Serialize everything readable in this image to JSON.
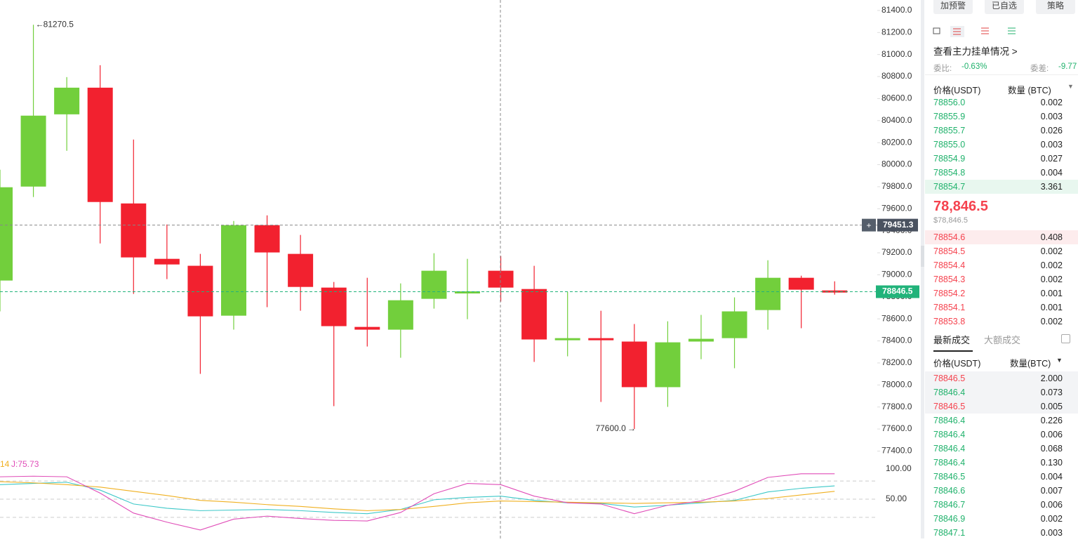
{
  "chart_data": {
    "type": "candlestick",
    "open": [
      78948,
      79801,
      80457,
      80699,
      79648,
      79145,
      79082,
      78629,
      79451,
      79190,
      78884,
      78527,
      78502,
      78782,
      78840,
      79037,
      78871,
      78413,
      78425,
      78394,
      77980,
      78394,
      78425,
      78680,
      78973,
      78858
    ],
    "high": [
      79954,
      81270.5,
      80795,
      80903,
      80228,
      79457,
      79190,
      79489,
      79540,
      79362,
      78935,
      78973,
      78922,
      79196,
      79145,
      79171,
      79082,
      78846,
      78674,
      78553,
      78578,
      78636,
      78795,
      79132,
      78992,
      78941
    ],
    "low": [
      78668,
      79706,
      80126,
      79285,
      78827,
      78961,
      78101,
      78502,
      78706,
      78674,
      77808,
      78349,
      78247,
      78693,
      78597,
      78757,
      78209,
      78260,
      77846,
      77600,
      77801,
      78234,
      78152,
      78502,
      78515,
      78820
    ],
    "close": [
      79795,
      80445,
      80699,
      79661,
      79158,
      79094,
      78623,
      79451,
      79203,
      78890,
      78534,
      78502,
      78769,
      79037,
      78850,
      78884,
      78413,
      78425,
      78406,
      77980,
      78387,
      78419,
      78668,
      78973,
      78865,
      78846.5
    ],
    "up_color": "#72cf3c",
    "down_color": "#f2212f",
    "ylim": [
      77320,
      81495
    ],
    "yticks": [
      {
        "value": 81400,
        "label": "81400.0"
      },
      {
        "value": 81200,
        "label": "81200.0"
      },
      {
        "value": 81000,
        "label": "81000.0"
      },
      {
        "value": 80800,
        "label": "80800.0"
      },
      {
        "value": 80600,
        "label": "80600.0"
      },
      {
        "value": 80400,
        "label": "80400.0"
      },
      {
        "value": 80200,
        "label": "80200.0"
      },
      {
        "value": 80000,
        "label": "80000.0"
      },
      {
        "value": 79800,
        "label": "79800.0"
      },
      {
        "value": 79600,
        "label": "79600.0"
      },
      {
        "value": 79400,
        "label": "79400.0"
      },
      {
        "value": 79200,
        "label": "79200.0"
      },
      {
        "value": 79000,
        "label": "79000.0"
      },
      {
        "value": 78800,
        "label": "78800.0"
      },
      {
        "value": 78600,
        "label": "78600.0"
      },
      {
        "value": 78400,
        "label": "78400.0"
      },
      {
        "value": 78200,
        "label": "78200.0"
      },
      {
        "value": 78000,
        "label": "78000.0"
      },
      {
        "value": 77800,
        "label": "77800.0"
      },
      {
        "value": 77600,
        "label": "77600.0"
      },
      {
        "value": 77400,
        "label": "77400.0"
      }
    ],
    "high_marker": 81270.5,
    "low_marker": {
      "value": 77600,
      "label": "77600.0"
    },
    "crosshair_price": 79451.3,
    "last_price": 78846.5,
    "indicator": {
      "ylim": [
        -15,
        115
      ],
      "yticks": [
        {
          "value": 100,
          "label": "100.00"
        },
        {
          "value": 50,
          "label": "50.00"
        }
      ],
      "guides": [
        80,
        50,
        20
      ],
      "labels": [
        "14",
        "J:75.73"
      ],
      "series": [
        {
          "color": "#3cc8c8",
          "values": [
            74,
            76,
            78,
            65,
            42,
            35,
            31,
            32,
            33,
            31,
            28,
            26,
            33,
            49,
            53,
            55,
            48,
            44,
            43,
            37,
            40,
            44,
            48,
            62,
            68,
            72
          ]
        },
        {
          "color": "#f0b020",
          "values": [
            79,
            77,
            74,
            70,
            63,
            56,
            48,
            45,
            41,
            38,
            34,
            31,
            33,
            38,
            44,
            47,
            46,
            45,
            44,
            43,
            44,
            45,
            47,
            51,
            57,
            63
          ]
        },
        {
          "color": "#e04db8",
          "values": [
            87,
            88,
            87,
            60,
            27,
            12,
            -1,
            17,
            22,
            18,
            15,
            14,
            28,
            59,
            76,
            74,
            55,
            44,
            42,
            26,
            40,
            47,
            63,
            86,
            92,
            92
          ]
        }
      ]
    }
  },
  "panel": {
    "buttons": [
      "加预警",
      "已自选",
      "策略"
    ],
    "depth_link": "查看主力挂单情况 >",
    "ratio_label": "委比:",
    "ratio": "-0.63%",
    "diff_label": "委差:",
    "diff": "-9.77",
    "book_header": {
      "price": "价格(USDT)",
      "qty": "数量 (BTC)"
    },
    "asks": [
      [
        "78856.0",
        "0.002"
      ],
      [
        "78855.9",
        "0.003"
      ],
      [
        "78855.7",
        "0.026"
      ],
      [
        "78855.0",
        "0.003"
      ],
      [
        "78854.9",
        "0.027"
      ],
      [
        "78854.8",
        "0.004"
      ],
      [
        "78854.7",
        "3.361"
      ]
    ],
    "last_price": "78,846.5",
    "last_price_usd": "$78,846.5",
    "bids": [
      [
        "78854.6",
        "0.408"
      ],
      [
        "78854.5",
        "0.002"
      ],
      [
        "78854.4",
        "0.002"
      ],
      [
        "78854.3",
        "0.002"
      ],
      [
        "78854.2",
        "0.001"
      ],
      [
        "78854.1",
        "0.001"
      ],
      [
        "78853.8",
        "0.002"
      ]
    ],
    "tabs": [
      "最新成交",
      "大额成交"
    ],
    "trade_header": {
      "price": "价格(USDT)",
      "qty": "数量(BTC)"
    },
    "trades": [
      {
        "price": "78846.5",
        "qty": "2.000",
        "color": "#f5424e"
      },
      {
        "price": "78846.4",
        "qty": "0.073",
        "color": "#20b26c"
      },
      {
        "price": "78846.5",
        "qty": "0.005",
        "color": "#f5424e"
      },
      {
        "price": "78846.4",
        "qty": "0.226",
        "color": "#20b26c"
      },
      {
        "price": "78846.4",
        "qty": "0.006",
        "color": "#20b26c"
      },
      {
        "price": "78846.4",
        "qty": "0.068",
        "color": "#20b26c"
      },
      {
        "price": "78846.4",
        "qty": "0.130",
        "color": "#20b26c"
      },
      {
        "price": "78846.5",
        "qty": "0.004",
        "color": "#20b26c"
      },
      {
        "price": "78846.6",
        "qty": "0.007",
        "color": "#20b26c"
      },
      {
        "price": "78846.7",
        "qty": "0.006",
        "color": "#20b26c"
      },
      {
        "price": "78846.9",
        "qty": "0.002",
        "color": "#20b26c"
      },
      {
        "price": "78847.1",
        "qty": "0.003",
        "color": "#20b26c"
      }
    ]
  }
}
